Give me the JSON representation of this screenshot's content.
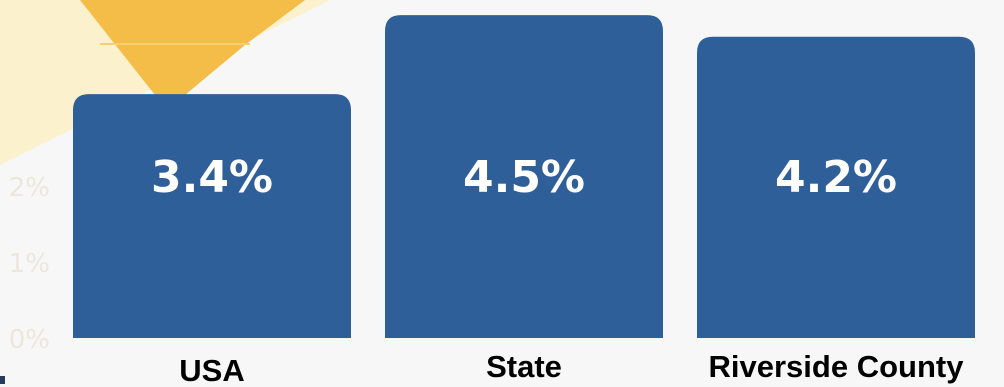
{
  "chart_data": {
    "type": "bar",
    "categories": [
      "USA",
      "State",
      "Riverside County"
    ],
    "values": [
      3.4,
      4.5,
      4.2
    ],
    "value_labels": [
      "3.4%",
      "4.5%",
      "4.2%"
    ],
    "y_ticks": [
      "0%",
      "1%",
      "2%"
    ],
    "ylim": [
      0,
      4.6
    ],
    "grid": false,
    "colors": {
      "bar": "#2f5f98",
      "value_text": "#ffffff",
      "decoration_gold": "#f3bd47",
      "decoration_cream": "#fbf1cc"
    }
  }
}
